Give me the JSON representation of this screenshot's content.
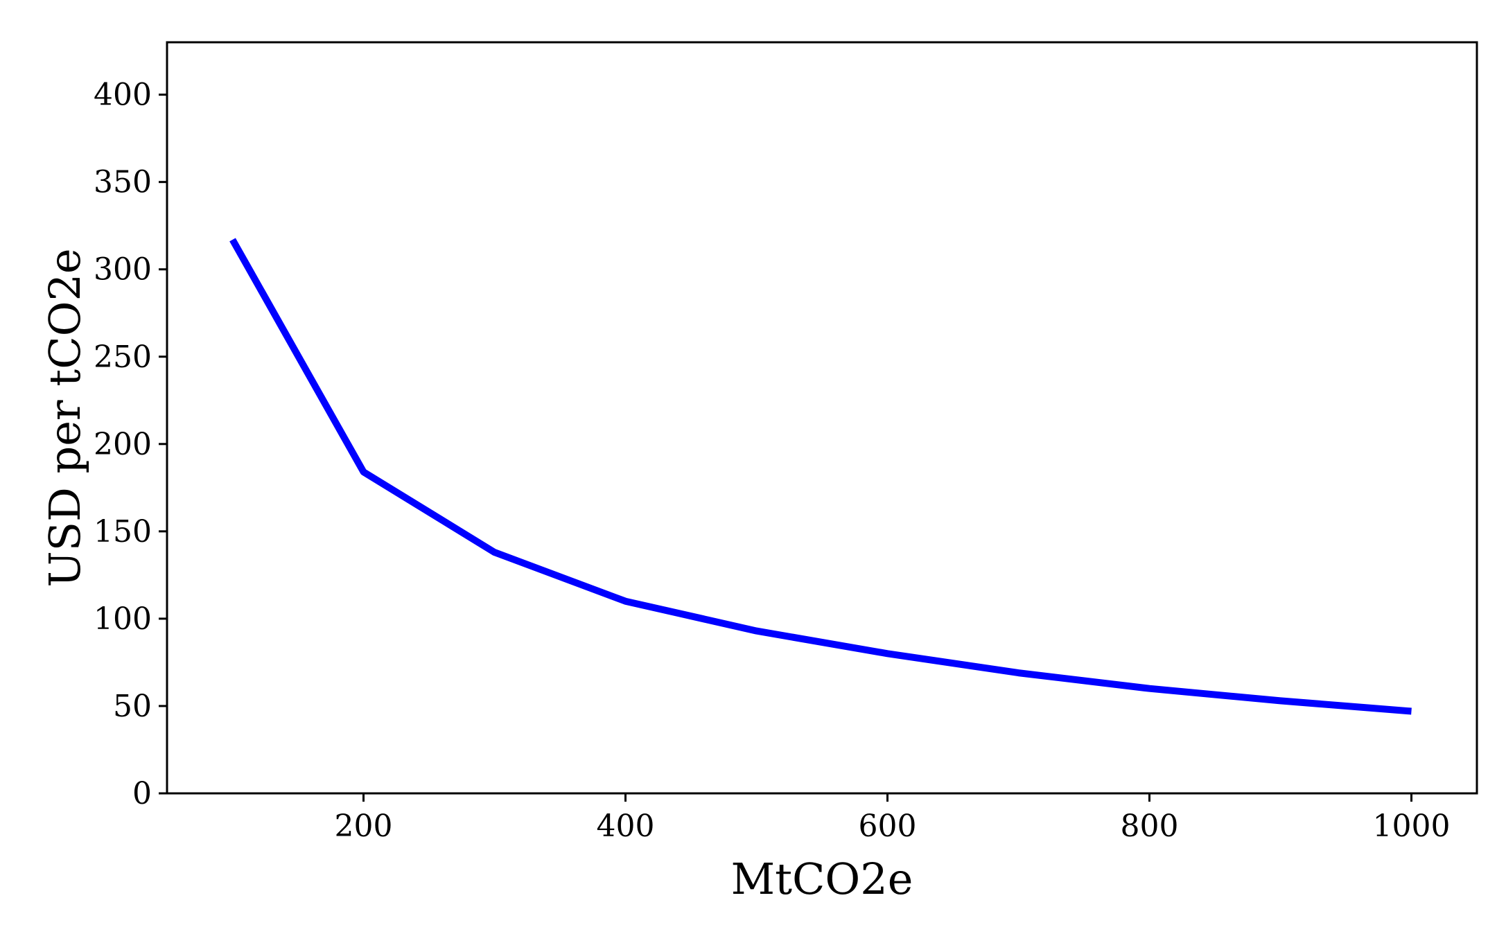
{
  "chart_data": {
    "type": "line",
    "title": "",
    "xlabel": "MtCO2e",
    "ylabel": "USD per tCO2e",
    "xlim": [
      50,
      1050
    ],
    "ylim": [
      0,
      430
    ],
    "xticks": [
      200,
      400,
      600,
      800,
      1000
    ],
    "yticks": [
      0,
      50,
      100,
      150,
      200,
      250,
      300,
      350,
      400
    ],
    "grid": false,
    "legend": "none",
    "series": [
      {
        "name": "USD per tCO2e",
        "color": "#0000ff",
        "x": [
          100,
          200,
          300,
          400,
          500,
          600,
          700,
          800,
          900,
          1000
        ],
        "y": [
          317,
          184,
          138,
          110,
          93,
          80,
          69,
          60,
          53,
          47
        ]
      }
    ]
  }
}
